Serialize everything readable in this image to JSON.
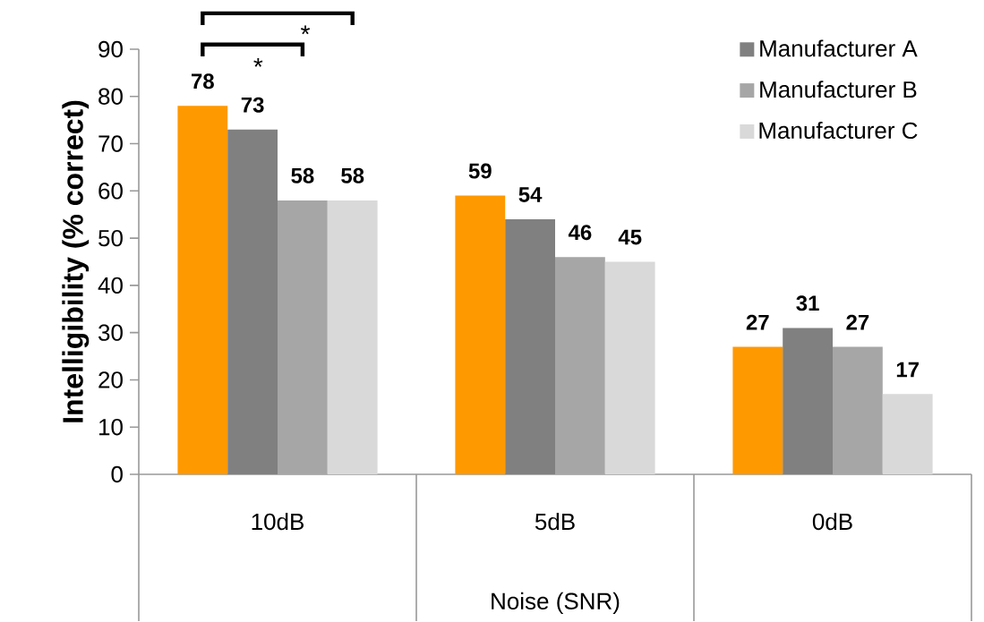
{
  "chart_data": {
    "type": "bar",
    "xlabel": "Noise (SNR)",
    "ylabel": "Intelligibility (% correct)",
    "categories": [
      "10dB",
      "5dB",
      "0dB"
    ],
    "series": [
      {
        "color": "#ff9900",
        "values": [
          78,
          59,
          27
        ]
      },
      {
        "name": "Manufacturer A",
        "color": "#808080",
        "values": [
          73,
          54,
          31
        ]
      },
      {
        "name": "Manufacturer B",
        "color": "#a6a6a6",
        "values": [
          58,
          46,
          27
        ]
      },
      {
        "name": "Manufacturer C",
        "color": "#d9d9d9",
        "values": [
          58,
          45,
          17
        ]
      }
    ],
    "ylim": [
      0,
      90
    ],
    "yticks": [
      0,
      10,
      20,
      30,
      40,
      50,
      60,
      70,
      80,
      90
    ],
    "data_labels": true,
    "legend": "top right",
    "grid": false,
    "annotations": [
      "*",
      "*"
    ]
  }
}
